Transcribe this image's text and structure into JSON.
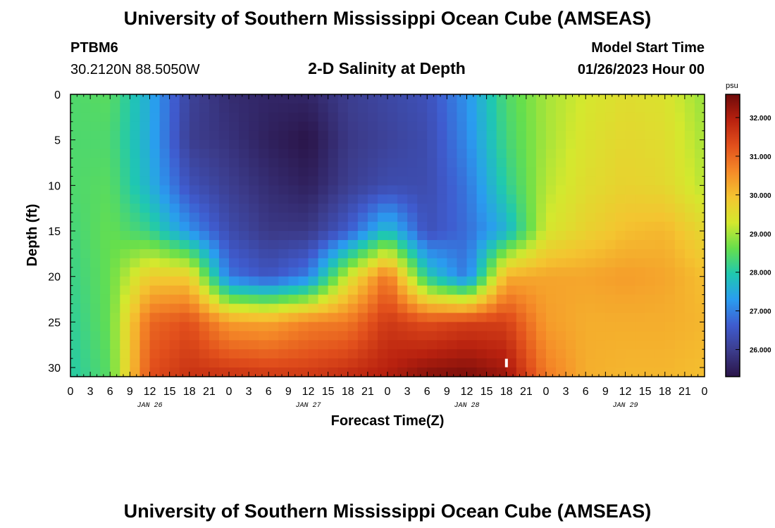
{
  "header": {
    "title": "University of Southern Mississippi Ocean Cube (AMSEAS)",
    "station": "PTBM6",
    "coords": "30.2120N  88.5050W",
    "subtitle": "2-D Salinity at Depth",
    "model_label": "Model Start Time",
    "model_time": "01/26/2023 Hour 00"
  },
  "footer": {
    "title": "University of Southern Mississippi Ocean Cube (AMSEAS)"
  },
  "chart_data": {
    "type": "heatmap",
    "title": "2-D Salinity at Depth",
    "xlabel": "Forecast Time(Z)",
    "ylabel": "Depth (ft)",
    "x_range_hours": [
      0,
      96
    ],
    "y_range_ft": [
      0,
      31
    ],
    "x_tick_step_hours": 3,
    "x_tick_labels": [
      "0",
      "3",
      "6",
      "9",
      "12",
      "15",
      "18",
      "21",
      "0",
      "3",
      "6",
      "9",
      "12",
      "15",
      "18",
      "21",
      "0",
      "3",
      "6",
      "9",
      "12",
      "15",
      "18",
      "21",
      "0",
      "3",
      "6",
      "9",
      "12",
      "15",
      "18",
      "21",
      "0"
    ],
    "date_labels": [
      {
        "label": "JAN 26",
        "hour": 12
      },
      {
        "label": "JAN 27",
        "hour": 36
      },
      {
        "label": "JAN 28",
        "hour": 60
      },
      {
        "label": "JAN 29",
        "hour": 84
      }
    ],
    "y_ticks": [
      0,
      5,
      10,
      15,
      20,
      25,
      30
    ],
    "colorbar": {
      "unit": "psu",
      "min": 25.3,
      "max": 32.6,
      "ticks": [
        "26.000",
        "27.000",
        "28.000",
        "29.000",
        "30.000",
        "31.000",
        "32.000"
      ],
      "tick_values": [
        26,
        27,
        28,
        29,
        30,
        31,
        32
      ],
      "stops": [
        "#2a1448",
        "#3c3c8c",
        "#3f5ccf",
        "#2a9cf0",
        "#1fc8b0",
        "#66df4c",
        "#d4e82e",
        "#f4c430",
        "#f58a28",
        "#e2501c",
        "#b8210f",
        "#6e0a0a"
      ]
    },
    "grid_x_hours": [
      0,
      6,
      12,
      18,
      24,
      30,
      36,
      42,
      48,
      54,
      60,
      66,
      72,
      78,
      84,
      90,
      96
    ],
    "grid_depth_ft": [
      0,
      5,
      10,
      15,
      20,
      25,
      31
    ],
    "salinity_psu": [
      [
        28.4,
        28.5,
        27.5,
        26.1,
        25.7,
        25.6,
        25.6,
        26.0,
        26.2,
        26.4,
        27.2,
        28.4,
        29.0,
        29.3,
        29.5,
        29.4,
        28.9
      ],
      [
        28.4,
        28.4,
        27.5,
        26.0,
        25.8,
        25.5,
        25.3,
        25.9,
        26.1,
        26.3,
        27.1,
        28.3,
        29.0,
        29.4,
        29.6,
        29.5,
        29.0
      ],
      [
        28.4,
        28.5,
        27.6,
        26.4,
        26.0,
        25.7,
        25.5,
        26.0,
        26.3,
        26.3,
        26.9,
        28.1,
        29.1,
        29.5,
        29.7,
        29.6,
        29.1
      ],
      [
        28.3,
        28.6,
        28.2,
        27.2,
        26.3,
        25.9,
        25.9,
        26.6,
        27.8,
        26.4,
        26.8,
        27.6,
        29.3,
        29.7,
        30.0,
        30.1,
        29.6
      ],
      [
        28.2,
        28.6,
        29.8,
        29.8,
        26.9,
        26.5,
        27.0,
        29.3,
        30.9,
        28.0,
        26.9,
        30.2,
        30.3,
        30.3,
        30.4,
        30.3,
        30.0
      ],
      [
        28.1,
        28.6,
        31.0,
        31.3,
        30.4,
        30.3,
        30.7,
        30.8,
        31.6,
        31.3,
        31.5,
        31.5,
        30.4,
        30.2,
        30.2,
        30.2,
        30.1
      ],
      [
        28.0,
        28.5,
        31.3,
        31.7,
        31.7,
        31.6,
        31.6,
        31.8,
        32.0,
        32.4,
        32.5,
        32.2,
        30.8,
        30.2,
        30.1,
        30.1,
        30.0
      ]
    ],
    "marker": {
      "hour": 66,
      "depth_ft": 29.5
    }
  }
}
